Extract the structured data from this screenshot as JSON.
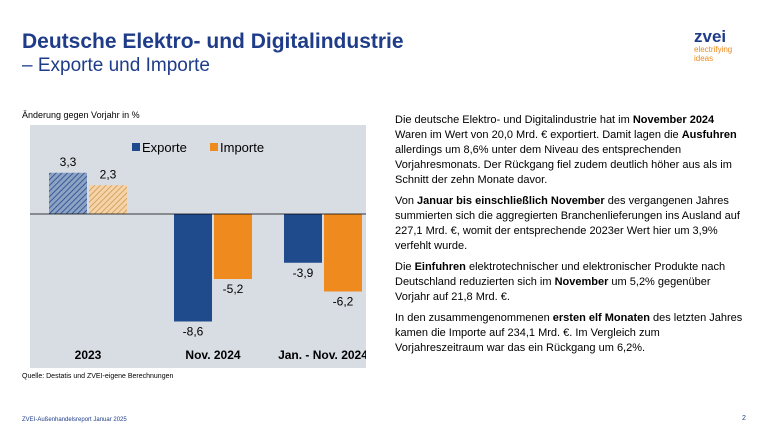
{
  "header": {
    "title_line1": "Deutsche Elektro- und Digitalindustrie",
    "title_line2": "– Exporte und Importe"
  },
  "logo": {
    "wordmark": "zvei",
    "tagline1": "electrifying",
    "tagline2": "ideas"
  },
  "chart_ylabel": "Änderung gegen Vorjahr in %",
  "chart_data": {
    "type": "bar",
    "categories": [
      "2023",
      "Nov. 2024",
      "Jan. - Nov. 2024"
    ],
    "series": [
      {
        "name": "Exporte",
        "values": [
          3.3,
          -8.6,
          -3.9
        ]
      },
      {
        "name": "Importe",
        "values": [
          2.3,
          -5.2,
          -6.2
        ]
      }
    ],
    "value_labels": [
      [
        "3,3",
        "-8,6",
        "-3,9"
      ],
      [
        "2,3",
        "-5,2",
        "-6,2"
      ]
    ],
    "ylabel": "Änderung gegen Vorjahr in %",
    "ylim": [
      -10,
      5
    ],
    "grid": false,
    "legend": "top",
    "colors": {
      "exporte": "#1f4a8c",
      "importe": "#ef8a1e",
      "background": "#d8dde3"
    }
  },
  "source": "Quelle: Destatis und ZVEI-eigene Berechnungen",
  "footer": "ZVEI-Außenhandelsreport Januar 2025",
  "page_number": "2",
  "paragraphs": [
    [
      {
        "t": "Die deutsche Elektro- und Digitalindustrie hat im "
      },
      {
        "t": "November 2024",
        "b": true
      },
      {
        "t": " Waren im Wert von 20,0 Mrd. € exportiert. Damit lagen die "
      },
      {
        "t": "Ausfuhren",
        "b": true
      },
      {
        "t": " allerdings um 8,6% unter dem Niveau des entsprechenden Vorjahresmonats. Der Rückgang fiel zudem deutlich höher aus als im Schnitt der zehn Monate davor."
      }
    ],
    [
      {
        "t": "Von "
      },
      {
        "t": "Januar bis einschließlich November",
        "b": true
      },
      {
        "t": " des vergangenen Jahres summierten sich die aggregierten Branchenlieferungen ins Ausland auf 227,1 Mrd. €, womit der entsprechende 2023er Wert hier um 3,9% verfehlt wurde."
      }
    ],
    [
      {
        "t": "Die "
      },
      {
        "t": "Einfuhren",
        "b": true
      },
      {
        "t": " elektrotechnischer und elektronischer Produkte nach Deutschland reduzierten sich im "
      },
      {
        "t": "November",
        "b": true
      },
      {
        "t": " um 5,2% gegenüber Vorjahr auf 21,8 Mrd. €."
      }
    ],
    [
      {
        "t": "In den zusammengenommenen "
      },
      {
        "t": "ersten elf Monaten",
        "b": true
      },
      {
        "t": " des letzten Jahres kamen die Importe auf 234,1 Mrd. €. Im Vergleich zum Vorjahreszeitraum war das ein Rückgang um 6,2%."
      }
    ]
  ]
}
